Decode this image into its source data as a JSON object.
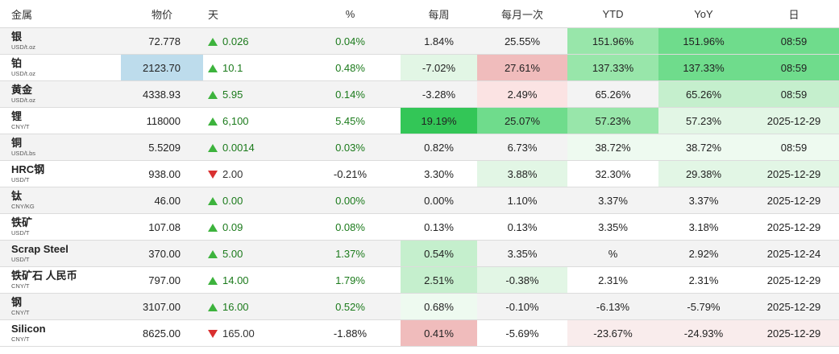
{
  "headers": [
    "金属",
    "物价",
    "天",
    "%",
    "每周",
    "每月一次",
    "YTD",
    "YoY",
    "日"
  ],
  "rows": [
    {
      "name": "银",
      "unit": "USD/t.oz",
      "price": "72.778",
      "day_dir": "up",
      "day": "0.026",
      "pct": "0.04%",
      "weekly": "1.84%",
      "monthly": "25.55%",
      "ytd": "151.96%",
      "yoy": "151.96%",
      "date": "08:59"
    },
    {
      "name": "铂",
      "unit": "USD/t.oz",
      "price": "2123.70",
      "day_dir": "up",
      "day": "10.1",
      "pct": "0.48%",
      "weekly": "-7.02%",
      "monthly": "27.61%",
      "ytd": "137.33%",
      "yoy": "137.33%",
      "date": "08:59"
    },
    {
      "name": "黄金",
      "unit": "USD/t.oz",
      "price": "4338.93",
      "day_dir": "up",
      "day": "5.95",
      "pct": "0.14%",
      "weekly": "-3.28%",
      "monthly": "2.49%",
      "ytd": "65.26%",
      "yoy": "65.26%",
      "date": "08:59"
    },
    {
      "name": "锂",
      "unit": "CNY/T",
      "price": "118000",
      "day_dir": "up",
      "day": "6,100",
      "pct": "5.45%",
      "weekly": "19.19%",
      "monthly": "25.07%",
      "ytd": "57.23%",
      "yoy": "57.23%",
      "date": "2025-12-29"
    },
    {
      "name": "铜",
      "unit": "USD/Lbs",
      "price": "5.5209",
      "day_dir": "up",
      "day": "0.0014",
      "pct": "0.03%",
      "weekly": "0.82%",
      "monthly": "6.73%",
      "ytd": "38.72%",
      "yoy": "38.72%",
      "date": "08:59"
    },
    {
      "name": "HRC钢",
      "unit": "USD/T",
      "price": "938.00",
      "day_dir": "down",
      "day": "2.00",
      "pct": "-0.21%",
      "weekly": "3.30%",
      "monthly": "3.88%",
      "ytd": "32.30%",
      "yoy": "29.38%",
      "date": "2025-12-29"
    },
    {
      "name": "钛",
      "unit": "CNY/KG",
      "price": "46.00",
      "day_dir": "up",
      "day": "0.00",
      "pct": "0.00%",
      "weekly": "0.00%",
      "monthly": "1.10%",
      "ytd": "3.37%",
      "yoy": "3.37%",
      "date": "2025-12-29"
    },
    {
      "name": "铁矿",
      "unit": "USD/T",
      "price": "107.08",
      "day_dir": "up",
      "day": "0.09",
      "pct": "0.08%",
      "weekly": "0.13%",
      "monthly": "0.13%",
      "ytd": "3.35%",
      "yoy": "3.18%",
      "date": "2025-12-29"
    },
    {
      "name": "Scrap Steel",
      "unit": "USD/T",
      "price": "370.00",
      "day_dir": "up",
      "day": "5.00",
      "pct": "1.37%",
      "weekly": "0.54%",
      "monthly": "3.35%",
      "ytd": "%",
      "yoy": "2.92%",
      "date": "2025-12-24"
    },
    {
      "name": "铁矿石 人民币",
      "unit": "CNY/T",
      "price": "797.00",
      "day_dir": "up",
      "day": "14.00",
      "pct": "1.79%",
      "weekly": "2.51%",
      "monthly": "-0.38%",
      "ytd": "2.31%",
      "yoy": "2.31%",
      "date": "2025-12-29"
    },
    {
      "name": "钢",
      "unit": "CNY/T",
      "price": "3107.00",
      "day_dir": "up",
      "day": "16.00",
      "pct": "0.52%",
      "weekly": "0.68%",
      "monthly": "-0.10%",
      "ytd": "-6.13%",
      "yoy": "-5.79%",
      "date": "2025-12-29"
    },
    {
      "name": "Silicon",
      "unit": "CNY/T",
      "price": "8625.00",
      "day_dir": "down",
      "day": "165.00",
      "pct": "-1.88%",
      "weekly": "0.41%",
      "monthly": "-5.69%",
      "ytd": "-23.67%",
      "yoy": "-24.93%",
      "date": "2025-12-29"
    }
  ],
  "colors": {
    "up_arrow": "#3db33d",
    "down_arrow": "#d93030",
    "highlight_price": "#bddcec",
    "green_strongest": "#33c657",
    "green_strong": "#6fdc8c",
    "green_mid": "#98e6aa",
    "green_light": "#c5efcd",
    "green_pale": "#e2f6e5",
    "green_faint": "#eefaf0",
    "red_mid": "#f0bcbc",
    "red_light": "#fbe3e3",
    "red_faint": "#f9ecec"
  }
}
